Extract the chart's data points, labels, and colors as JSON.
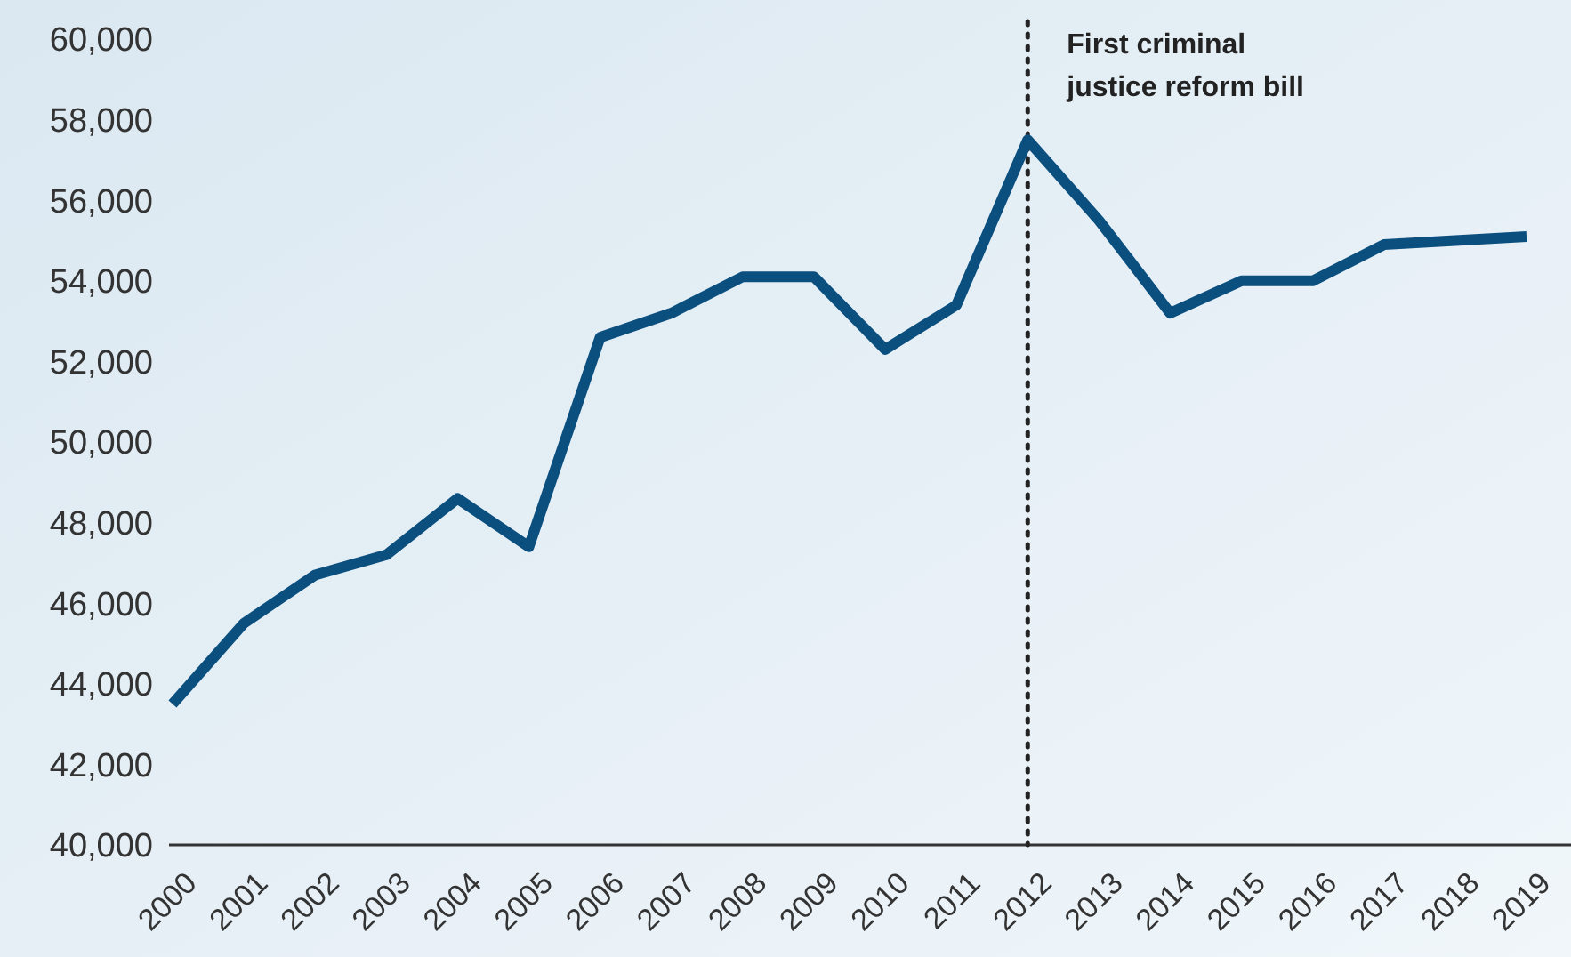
{
  "chart_data": {
    "type": "line",
    "categories": [
      "2000",
      "2001",
      "2002",
      "2003",
      "2004",
      "2005",
      "2006",
      "2007",
      "2008",
      "2009",
      "2010",
      "2011",
      "2012",
      "2013",
      "2014",
      "2015",
      "2016",
      "2017",
      "2018",
      "2019"
    ],
    "series": [
      {
        "color": "#0b4f7f",
        "values": [
          43500,
          45500,
          46700,
          47200,
          48600,
          47400,
          52600,
          53200,
          54100,
          54100,
          52300,
          53400,
          57500,
          55500,
          53200,
          54000,
          54000,
          54900,
          55000,
          55100
        ]
      }
    ],
    "ylim": [
      40000,
      60000
    ],
    "yticks": [
      {
        "value": 40000,
        "label": "40,000"
      },
      {
        "value": 42000,
        "label": "42,000"
      },
      {
        "value": 44000,
        "label": "44,000"
      },
      {
        "value": 46000,
        "label": "46,000"
      },
      {
        "value": 48000,
        "label": "48,000"
      },
      {
        "value": 50000,
        "label": "50,000"
      },
      {
        "value": 52000,
        "label": "52,000"
      },
      {
        "value": 54000,
        "label": "54,000"
      },
      {
        "value": 56000,
        "label": "56,000"
      },
      {
        "value": 58000,
        "label": "58,000"
      },
      {
        "value": 60000,
        "label": "60,000"
      }
    ],
    "ref_lines": [
      {
        "axis": "x",
        "value": "2012",
        "label": "First criminal justice reform bill",
        "line_style": "dotted",
        "color": "#222222"
      }
    ],
    "grid": false,
    "marker": "none",
    "line_style": "solid"
  }
}
